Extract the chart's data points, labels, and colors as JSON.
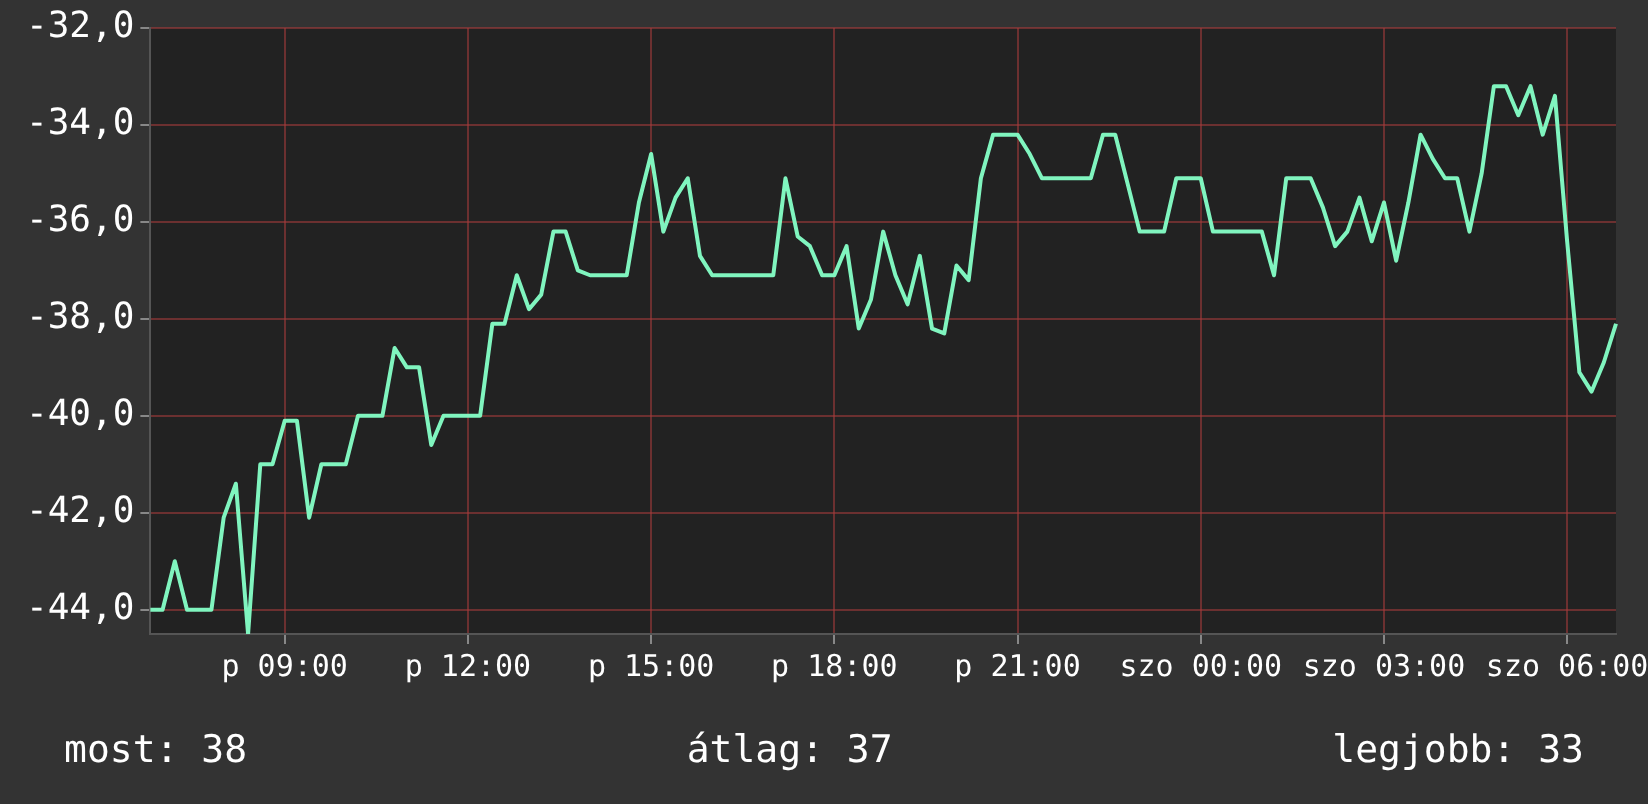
{
  "chart_data": {
    "type": "line",
    "categories": [
      null,
      null,
      null,
      null,
      null,
      null,
      null,
      null,
      null,
      null,
      null,
      "p 09:00",
      null,
      null,
      null,
      null,
      null,
      null,
      null,
      null,
      null,
      null,
      null,
      null,
      null,
      null,
      "p 12:00",
      null,
      null,
      null,
      null,
      null,
      null,
      null,
      null,
      null,
      null,
      null,
      null,
      null,
      null,
      "p 15:00",
      null,
      null,
      null,
      null,
      null,
      null,
      null,
      null,
      null,
      null,
      null,
      null,
      null,
      null,
      "p 18:00",
      null,
      null,
      null,
      null,
      null,
      null,
      null,
      null,
      null,
      null,
      null,
      null,
      null,
      null,
      "p 21:00",
      null,
      null,
      null,
      null,
      null,
      null,
      null,
      null,
      null,
      null,
      null,
      null,
      null,
      null,
      "szo 00:00",
      null,
      null,
      null,
      null,
      null,
      null,
      null,
      null,
      null,
      null,
      null,
      null,
      null,
      null,
      "szo 03:00",
      null,
      null,
      null,
      null,
      null,
      null,
      null,
      null,
      null,
      null,
      null,
      null,
      null,
      null,
      "szo 06:00",
      null,
      null,
      null,
      null
    ],
    "series": [
      {
        "color": "#80f5bf",
        "values": [
          -44,
          -44,
          -43,
          -44,
          -44,
          -44,
          -42.1,
          -41.4,
          -44.5,
          -41,
          -41,
          -40.1,
          -40.1,
          -42.1,
          -41,
          -41,
          -41,
          -40,
          -40,
          -40,
          -38.6,
          -39,
          -39,
          -40.6,
          -40,
          -40,
          -40,
          -40,
          -38.1,
          -38.1,
          -37.1,
          -37.8,
          -37.5,
          -36.2,
          -36.2,
          -37,
          -37.1,
          -37.1,
          -37.1,
          -37.1,
          -35.6,
          -34.6,
          -36.2,
          -35.5,
          -35.1,
          -36.7,
          -37.1,
          -37.1,
          -37.1,
          -37.1,
          -37.1,
          -37.1,
          -35.1,
          -36.3,
          -36.5,
          -37.1,
          -37.1,
          -36.5,
          -38.2,
          -37.6,
          -36.2,
          -37.1,
          -37.7,
          -36.7,
          -38.2,
          -38.3,
          -36.9,
          -37.2,
          -35.1,
          -34.2,
          -34.2,
          -34.2,
          -34.6,
          -35.1,
          -35.1,
          -35.1,
          -35.1,
          -35.1,
          -34.2,
          -34.2,
          -35.2,
          -36.2,
          -36.2,
          -36.2,
          -35.1,
          -35.1,
          -35.1,
          -36.2,
          -36.2,
          -36.2,
          -36.2,
          -36.2,
          -37.1,
          -35.1,
          -35.1,
          -35.1,
          -35.7,
          -36.5,
          -36.2,
          -35.5,
          -36.4,
          -35.6,
          -36.8,
          -35.6,
          -34.2,
          -34.7,
          -35.1,
          -35.1,
          -36.2,
          -35,
          -33.2,
          -33.2,
          -33.8,
          -33.2,
          -34.2,
          -33.4,
          -36.4,
          -39.1,
          -39.5,
          -38.9,
          -38.1
        ]
      }
    ],
    "ylim": [
      -44.5,
      -32
    ],
    "yticks": [
      {
        "value": -44,
        "label": "-44,0"
      },
      {
        "value": -42,
        "label": "-42,0"
      },
      {
        "value": -40,
        "label": "-40,0"
      },
      {
        "value": -38,
        "label": "-38,0"
      },
      {
        "value": -36,
        "label": "-36,0"
      },
      {
        "value": -34,
        "label": "-34,0"
      },
      {
        "value": -32,
        "label": "-32,0"
      }
    ],
    "grid": true,
    "annotations": [
      "most: 38",
      "átlag: 37",
      "legjobb: 33"
    ]
  }
}
